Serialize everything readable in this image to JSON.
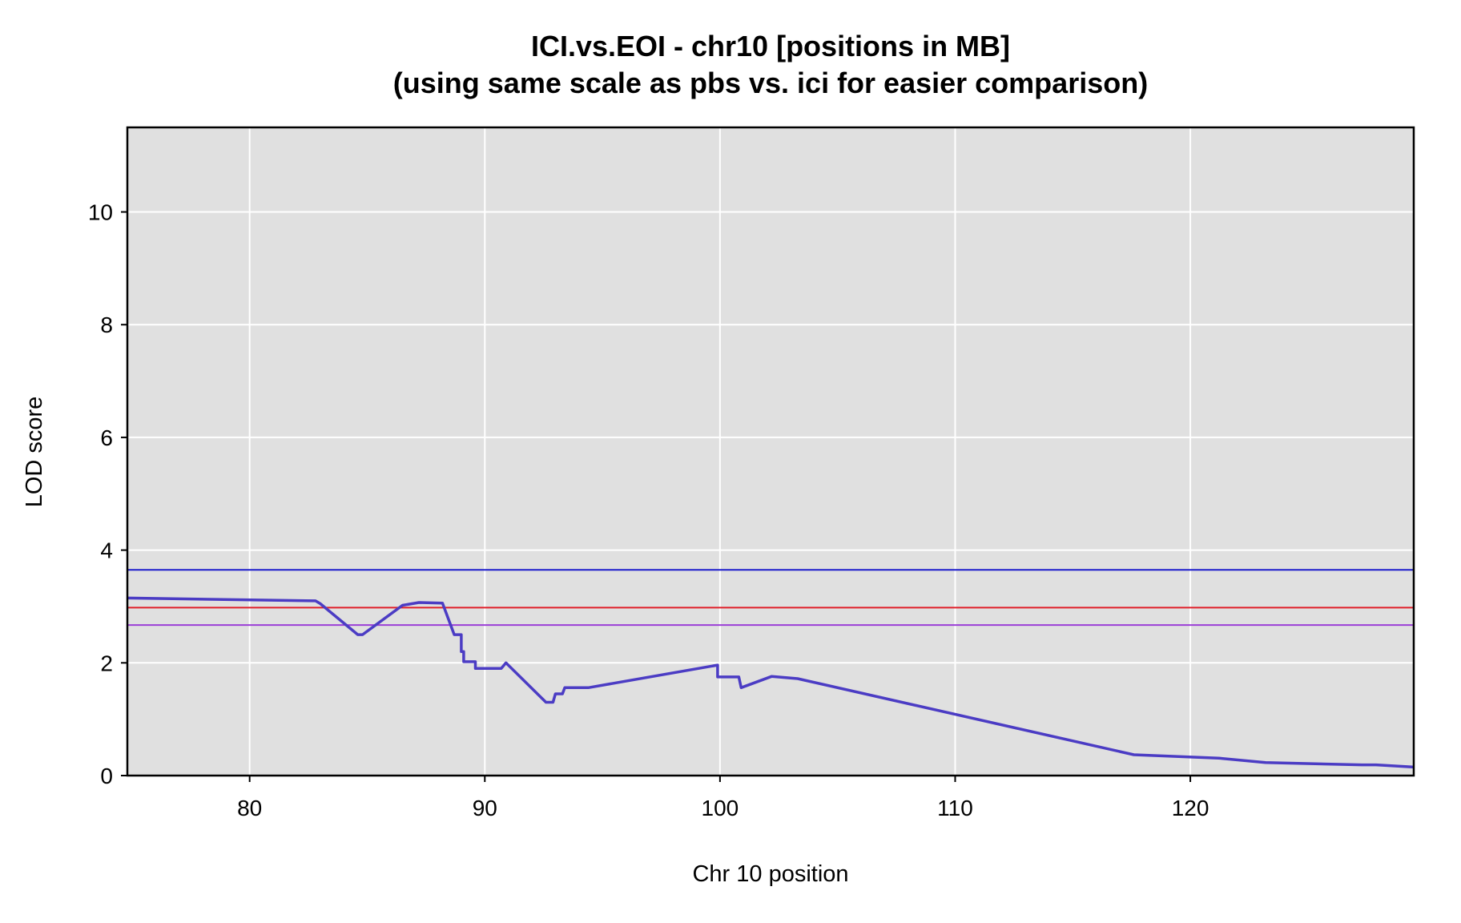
{
  "chart_data": {
    "type": "line",
    "title": "ICI.vs.EOI - chr10 [positions in MB]",
    "subtitle": "(using same scale as pbs vs. ici for easier comparison)",
    "xlabel": "Chr 10 position",
    "ylabel": "LOD score",
    "xlim": [
      74.8,
      129.5
    ],
    "ylim": [
      0,
      11.5
    ],
    "xticks": [
      80,
      90,
      100,
      110,
      120
    ],
    "yticks": [
      0,
      2,
      4,
      6,
      8,
      10
    ],
    "grid": true,
    "plot_background": "#e0e0e0",
    "series": [
      {
        "color": "#4b3cc4",
        "x": [
          74.8,
          82.8,
          83.0,
          84.6,
          84.8,
          86.5,
          87.2,
          88.2,
          88.7,
          88.7,
          89.0,
          89.0,
          89.1,
          89.1,
          89.6,
          89.6,
          90.7,
          90.9,
          92.6,
          92.9,
          93.0,
          93.3,
          93.4,
          94.4,
          99.9,
          99.9,
          100.8,
          100.9,
          102.2,
          103.3,
          117.6,
          121.2,
          123.2,
          127.3,
          127.9,
          129.5
        ],
        "y": [
          3.15,
          3.1,
          3.05,
          2.5,
          2.5,
          3.02,
          3.07,
          3.06,
          2.5,
          2.5,
          2.5,
          2.2,
          2.2,
          2.02,
          2.02,
          1.9,
          1.9,
          2.0,
          1.3,
          1.3,
          1.45,
          1.45,
          1.56,
          1.56,
          1.96,
          1.75,
          1.75,
          1.56,
          1.76,
          1.72,
          0.37,
          0.31,
          0.23,
          0.19,
          0.19,
          0.15
        ]
      }
    ],
    "threshold_lines": [
      {
        "y": 3.65,
        "color": "#1c1ccc"
      },
      {
        "y": 2.98,
        "color": "#e0202a"
      },
      {
        "y": 2.67,
        "color": "#9b3fd6"
      }
    ]
  }
}
